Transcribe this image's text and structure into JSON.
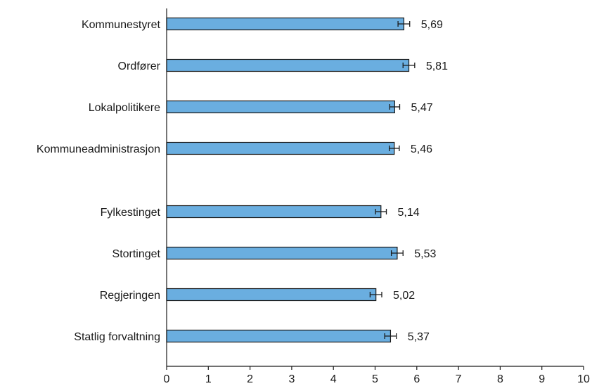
{
  "chart_data": {
    "type": "bar",
    "orientation": "horizontal",
    "groups": [
      {
        "categories": [
          "Kommunestyret",
          "Ordfører",
          "Lokalpolitikere",
          "Kommuneadministrasjon"
        ],
        "values": [
          5.69,
          5.81,
          5.47,
          5.46
        ],
        "value_labels": [
          "5,69",
          "5,81",
          "5,47",
          "5,46"
        ],
        "error_bars": [
          0.14,
          0.14,
          0.12,
          0.12
        ]
      },
      {
        "categories": [
          "Fylkestinget",
          "Stortinget",
          "Regjeringen",
          "Statlig forvaltning"
        ],
        "values": [
          5.14,
          5.53,
          5.02,
          5.37
        ],
        "value_labels": [
          "5,14",
          "5,53",
          "5,02",
          "5,37"
        ],
        "error_bars": [
          0.13,
          0.14,
          0.14,
          0.14
        ]
      }
    ],
    "xlim": [
      0,
      10
    ],
    "xticks": [
      "0",
      "1",
      "2",
      "3",
      "4",
      "5",
      "6",
      "7",
      "8",
      "9",
      "10"
    ],
    "title": "",
    "xlabel": "",
    "ylabel": "",
    "grid": false,
    "colors": {
      "bar": "#6aaee0",
      "outline": "#1a1a1a"
    }
  }
}
